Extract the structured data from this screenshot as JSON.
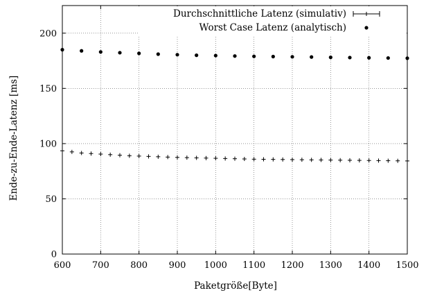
{
  "chart_data": {
    "type": "scatter",
    "xlabel": "Paketgröße[Byte]",
    "ylabel": "Ende-zu-Ende-Latenz [ms]",
    "xlim": [
      600,
      1500
    ],
    "ylim": [
      0,
      225
    ],
    "xticks": [
      600,
      700,
      800,
      900,
      1000,
      1100,
      1200,
      1300,
      1400,
      1500
    ],
    "yticks": [
      0,
      50,
      100,
      150,
      200
    ],
    "grid": true,
    "legend_position": "top-right",
    "series": [
      {
        "name": "Durchschnittliche Latenz (simulativ)",
        "marker": "plus-errorbar",
        "x": [
          600,
          625,
          650,
          675,
          700,
          725,
          750,
          775,
          800,
          825,
          850,
          875,
          900,
          925,
          950,
          975,
          1000,
          1025,
          1050,
          1075,
          1100,
          1125,
          1150,
          1175,
          1200,
          1225,
          1250,
          1275,
          1300,
          1325,
          1350,
          1375,
          1400,
          1425,
          1450,
          1475,
          1500
        ],
        "y": [
          93.5,
          92.5,
          91.5,
          91.0,
          90.5,
          90.0,
          89.5,
          89.0,
          88.7,
          88.4,
          88.1,
          87.8,
          87.5,
          87.3,
          87.1,
          86.9,
          86.7,
          86.5,
          86.3,
          86.1,
          85.9,
          85.8,
          85.7,
          85.6,
          85.5,
          85.4,
          85.3,
          85.2,
          85.1,
          85.0,
          84.9,
          84.8,
          84.7,
          84.6,
          84.5,
          84.4,
          84.3
        ]
      },
      {
        "name": "Worst Case Latenz (analytisch)",
        "marker": "dot",
        "x": [
          600,
          650,
          700,
          750,
          800,
          850,
          900,
          950,
          1000,
          1050,
          1100,
          1150,
          1200,
          1250,
          1300,
          1350,
          1400,
          1450,
          1500
        ],
        "y": [
          185.0,
          184.0,
          183.0,
          182.3,
          181.7,
          181.0,
          180.5,
          180.0,
          179.7,
          179.3,
          179.0,
          178.8,
          178.6,
          178.4,
          178.1,
          177.9,
          177.7,
          177.5,
          177.3
        ]
      }
    ]
  }
}
